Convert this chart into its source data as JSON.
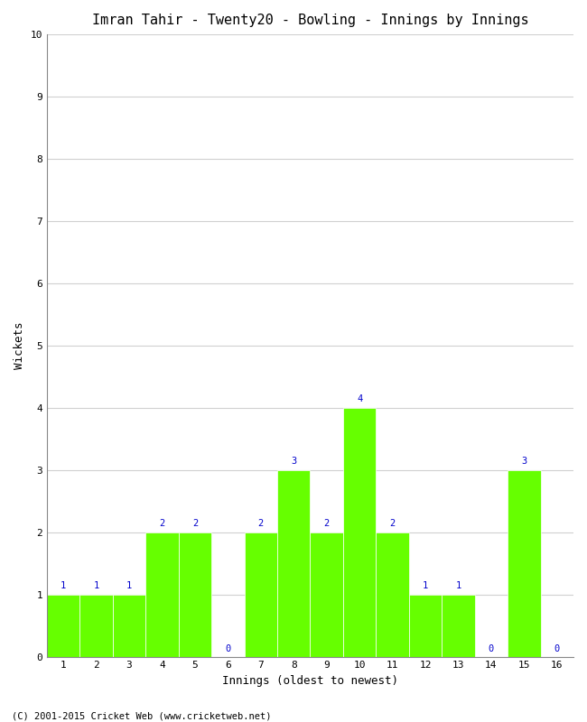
{
  "title": "Imran Tahir - Twenty20 - Bowling - Innings by Innings",
  "xlabel": "Innings (oldest to newest)",
  "ylabel": "Wickets",
  "innings": [
    1,
    2,
    3,
    4,
    5,
    6,
    7,
    8,
    9,
    10,
    11,
    12,
    13,
    14,
    15,
    16
  ],
  "wickets": [
    1,
    1,
    1,
    2,
    2,
    0,
    2,
    3,
    2,
    4,
    2,
    1,
    1,
    0,
    3,
    0
  ],
  "bar_color": "#66ff00",
  "label_color": "#0000cc",
  "ylim": [
    0,
    10
  ],
  "yticks": [
    0,
    1,
    2,
    3,
    4,
    5,
    6,
    7,
    8,
    9,
    10
  ],
  "bg_color": "#ffffff",
  "grid_color": "#d0d0d0",
  "footer": "(C) 2001-2015 Cricket Web (www.cricketweb.net)",
  "title_fontsize": 11,
  "axis_label_fontsize": 9,
  "tick_fontsize": 8,
  "annotation_fontsize": 7.5,
  "footer_fontsize": 7.5
}
